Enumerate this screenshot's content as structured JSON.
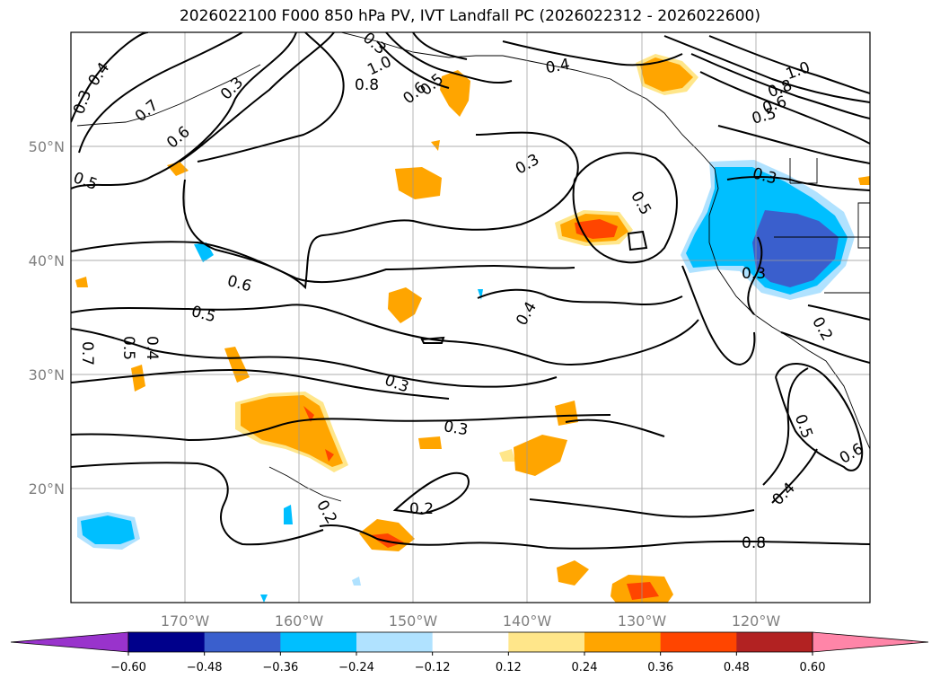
{
  "title": "2026022100 F000 850 hPa PV, IVT Landfall PC (2026022312 - 2026022600)",
  "map": {
    "lat_labels": [
      "50°N",
      "40°N",
      "30°N",
      "20°N"
    ],
    "lon_labels": [
      "170°W",
      "160°W",
      "150°W",
      "140°W",
      "130°W",
      "120°W"
    ],
    "contour_labels": [
      "0.3",
      "0.4",
      "0.7",
      "0.6",
      "0.5",
      "0.3",
      "0.8",
      "0.6",
      "0.5",
      "1.0",
      "0.4",
      "0.3",
      "0.5",
      "0.6",
      "0.5",
      "0.4",
      "0.3",
      "0.3",
      "0.2",
      "0.2",
      "0.8",
      "0.7",
      "0.5",
      "0.4",
      "0.3",
      "1.0",
      "0.8",
      "0.6",
      "0.5",
      "0.3",
      "0.3",
      "0.2",
      "0.5",
      "0.6",
      "0.4"
    ],
    "grid": true,
    "contour_color": "#000000"
  },
  "colorbar": {
    "ticks": [
      "−0.60",
      "−0.48",
      "−0.36",
      "−0.24",
      "−0.12",
      "0.12",
      "0.24",
      "0.36",
      "0.48",
      "0.60"
    ],
    "colors": [
      "#9933cc",
      "#00008b",
      "#3a5fcd",
      "#00bfff",
      "#b0e2ff",
      "#ffffff",
      "#ffe68a",
      "#ffa500",
      "#ff4500",
      "#b22222",
      "#ff85a8"
    ]
  }
}
